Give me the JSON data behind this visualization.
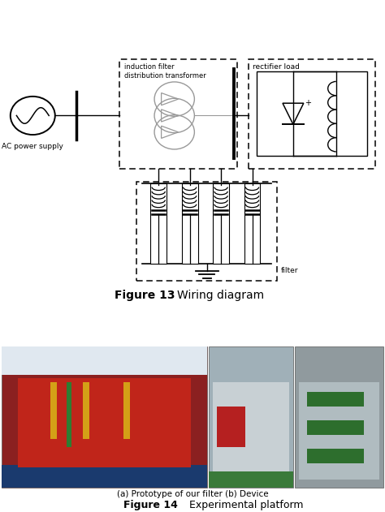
{
  "fig_width": 4.74,
  "fig_height": 6.31,
  "dpi": 100,
  "background_color": "#ffffff",
  "caption13_bold": "Figure 13",
  "caption13_normal": "Wiring diagram",
  "caption14_bold": "Figure 14",
  "caption14_normal": "Experimental platform",
  "caption14_sub": "(a) Prototype of our filter (b) Device",
  "lc": "#000000",
  "gray_lc": "#999999",
  "font_caption": 9,
  "font_label": 6.5
}
